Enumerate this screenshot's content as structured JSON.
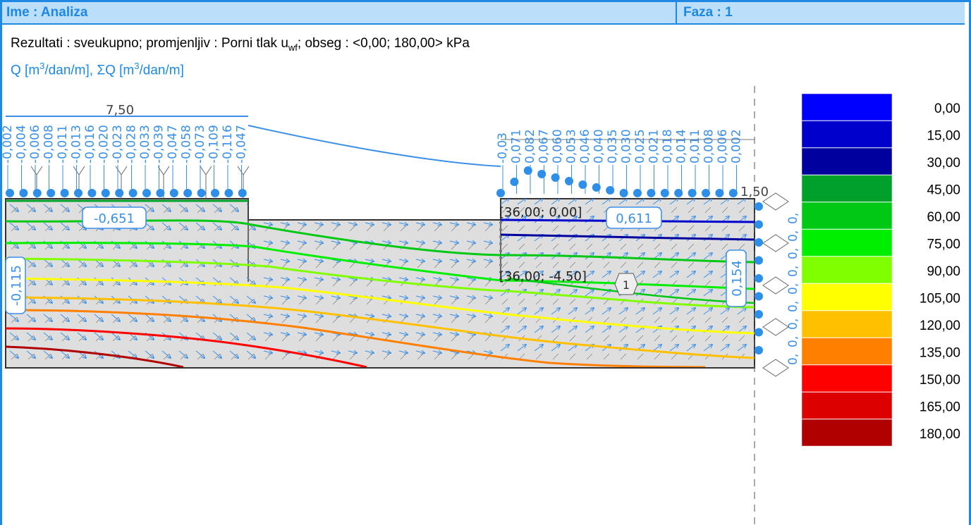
{
  "header": {
    "name_label": "Ime : Analiza",
    "phase_label": "Faza : 1"
  },
  "results": {
    "prefix": "Rezultati : sveukupno; promjenljiv : Porni tlak u",
    "subscript": "wf",
    "suffix": "; obseg : <0,00; 180,00> kPa"
  },
  "flow_label": {
    "q_part": "Q [m",
    "sup": "3",
    "q_part2": "/dan/m], ",
    "sigma_part": "ΣQ [m",
    "sigma_part2": "/dan/m]"
  },
  "axis_labels": {
    "left_tick": "7,50",
    "right_tick": "1,50"
  },
  "inflow_values_left": [
    "-0,002",
    "-0,004",
    "-0,006",
    "-0,008",
    "-0,011",
    "-0,013",
    "-0,016",
    "-0,020",
    "-0,023",
    "-0,028",
    "-0,033",
    "-0,039",
    "-0,047",
    "-0,058",
    "-0,073",
    "-0,109",
    "-0,116",
    "-0,047"
  ],
  "inflow_values_right": [
    "-0,03",
    "0,071",
    "0,082",
    "0,067",
    "0,060",
    "0,053",
    "0,046",
    "0,040",
    "0,035",
    "0,030",
    "0,025",
    "0,021",
    "0,018",
    "0,014",
    "0,011",
    "0,008",
    "0,006",
    "0,002"
  ],
  "sum_labels": {
    "top_left": "-0,651",
    "top_right": "0,611",
    "left_side": "-0,115",
    "right_side": "0,154"
  },
  "point_labels": {
    "p1": "[36,00; 0,00]",
    "p2": "[36,00; -4,50]",
    "region": "1"
  },
  "right_edge_labels": [
    "0,",
    "0,",
    "0,",
    "0,",
    "0,",
    "0,",
    "0,",
    "0,",
    "0,"
  ],
  "legend": {
    "items": [
      {
        "value": "0,00",
        "color": "#0000ff"
      },
      {
        "value": "15,00",
        "color": "#0000cc"
      },
      {
        "value": "30,00",
        "color": "#00009f"
      },
      {
        "value": "45,00",
        "color": "#00a02a"
      },
      {
        "value": "60,00",
        "color": "#00c814"
      },
      {
        "value": "75,00",
        "color": "#00ee00"
      },
      {
        "value": "90,00",
        "color": "#80ff00"
      },
      {
        "value": "105,00",
        "color": "#ffff00"
      },
      {
        "value": "120,00",
        "color": "#ffc000"
      },
      {
        "value": "135,00",
        "color": "#ff8000"
      },
      {
        "value": "150,00",
        "color": "#ff0000"
      },
      {
        "value": "165,00",
        "color": "#dd0000"
      },
      {
        "value": "180,00",
        "color": "#b00000"
      }
    ]
  },
  "colors": {
    "accent": "#1e88e5",
    "header_bg": "#bbdefb",
    "soil_fill": "#dedede"
  }
}
